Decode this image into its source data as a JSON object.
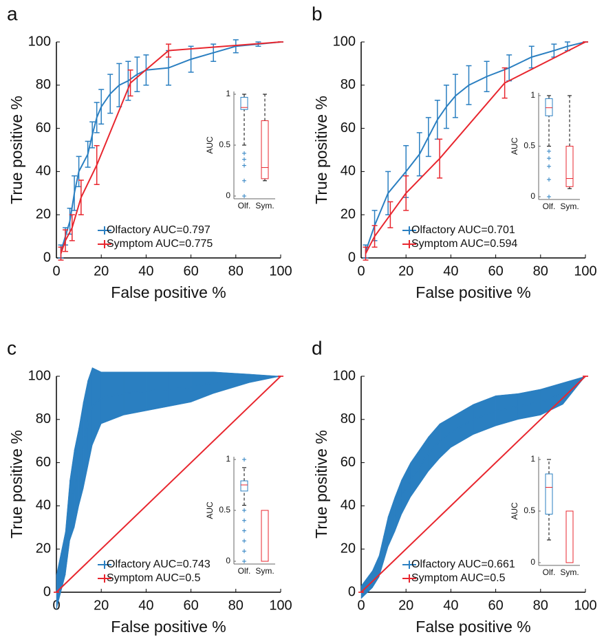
{
  "chart_data": [
    {
      "type": "line",
      "panel_label": "a",
      "xlabel": "False positive %",
      "ylabel": "True positive %",
      "xlim": [
        0,
        100
      ],
      "ylim": [
        0,
        100
      ],
      "xticks": [
        0,
        20,
        40,
        60,
        80,
        100
      ],
      "yticks": [
        0,
        20,
        40,
        60,
        80,
        100
      ],
      "legend": "lower right",
      "error_style": "bars",
      "series": [
        {
          "name": "Olfactory AUC=0.797",
          "color": "#2a7fc1",
          "x": [
            2,
            4,
            6,
            8,
            10,
            14,
            16,
            18,
            20,
            24,
            28,
            32,
            36,
            40,
            50,
            60,
            70,
            80,
            90,
            100
          ],
          "values": [
            3,
            10,
            17,
            30,
            40,
            48,
            57,
            65,
            70,
            76,
            80,
            82,
            85,
            87,
            88,
            92,
            95,
            98,
            99,
            100
          ],
          "errors": [
            3,
            4,
            6,
            8,
            7,
            6,
            6,
            7,
            8,
            9,
            10,
            9,
            8,
            7,
            8,
            6,
            4,
            3,
            1,
            0
          ]
        },
        {
          "name": "Symptom AUC=0.775",
          "color": "#e8262e",
          "x": [
            2,
            4,
            7,
            11,
            18,
            33,
            50,
            100
          ],
          "values": [
            2,
            8,
            14,
            28,
            43,
            81,
            96,
            100
          ],
          "errors": [
            3,
            5,
            6,
            8,
            9,
            6,
            3,
            0
          ]
        }
      ],
      "inset": {
        "type": "box",
        "ylabel": "AUC",
        "categories": [
          "Olf.",
          "Sym."
        ],
        "ylim": [
          0,
          1
        ],
        "yticks": [
          0,
          0.5,
          1
        ],
        "boxes": [
          {
            "color": "#2a7fc1",
            "whisker_low": 0.5,
            "q1": 0.85,
            "median": 0.87,
            "q3": 0.97,
            "whisker_high": 1,
            "outliers": [
              0.42,
              0.36,
              0.3,
              0.15,
              0
            ]
          },
          {
            "color": "#e8262e",
            "whisker_low": 0.15,
            "q1": 0.17,
            "median": 0.28,
            "q3": 0.74,
            "whisker_high": 1,
            "outliers": []
          }
        ]
      }
    },
    {
      "type": "line",
      "panel_label": "b",
      "xlabel": "False positive %",
      "ylabel": "True positive %",
      "xlim": [
        0,
        100
      ],
      "ylim": [
        0,
        100
      ],
      "xticks": [
        0,
        20,
        40,
        60,
        80,
        100
      ],
      "yticks": [
        0,
        20,
        40,
        60,
        80,
        100
      ],
      "legend": "lower right",
      "error_style": "bars",
      "series": [
        {
          "name": "Olfactory AUC=0.701",
          "color": "#2a7fc1",
          "x": [
            2,
            6,
            12,
            20,
            26,
            30,
            34,
            38,
            42,
            48,
            56,
            66,
            76,
            86,
            92,
            100
          ],
          "values": [
            3,
            15,
            30,
            40,
            48,
            56,
            64,
            70,
            75,
            80,
            84,
            88,
            93,
            96,
            98,
            100
          ],
          "errors": [
            3,
            7,
            10,
            12,
            10,
            9,
            9,
            10,
            10,
            9,
            7,
            6,
            5,
            3,
            2,
            0
          ]
        },
        {
          "name": "Symptom AUC=0.594",
          "color": "#e8262e",
          "x": [
            2,
            6,
            13,
            20,
            35,
            64,
            100
          ],
          "values": [
            2,
            10,
            20,
            30,
            46,
            81,
            100
          ],
          "errors": [
            3,
            5,
            6,
            8,
            9,
            7,
            0
          ]
        }
      ],
      "inset": {
        "type": "box",
        "ylabel": "AUC",
        "categories": [
          "Olf.",
          "Sym."
        ],
        "ylim": [
          0,
          1
        ],
        "yticks": [
          0,
          0.5,
          1
        ],
        "boxes": [
          {
            "color": "#2a7fc1",
            "whisker_low": 0.5,
            "q1": 0.8,
            "median": 0.88,
            "q3": 0.97,
            "whisker_high": 1,
            "outliers": [
              0.45,
              0.38,
              0.3,
              0.17,
              0
            ]
          },
          {
            "color": "#e8262e",
            "whisker_low": 0.08,
            "q1": 0.1,
            "median": 0.18,
            "q3": 0.5,
            "whisker_high": 1,
            "outliers": []
          }
        ]
      }
    },
    {
      "type": "line",
      "panel_label": "c",
      "xlabel": "False positive %",
      "ylabel": "True positive %",
      "xlim": [
        0,
        100
      ],
      "ylim": [
        0,
        100
      ],
      "xticks": [
        0,
        20,
        40,
        60,
        80,
        100
      ],
      "yticks": [
        0,
        20,
        40,
        60,
        80,
        100
      ],
      "legend": "lower right",
      "error_style": "band",
      "series": [
        {
          "name": "Olfactory AUC=0.743",
          "color": "#2a7fc1",
          "x": [
            0,
            2,
            4,
            5,
            6,
            8,
            10,
            12,
            14,
            16,
            20,
            30,
            40,
            50,
            60,
            70,
            86,
            100
          ],
          "values": [
            0,
            9,
            18,
            28,
            38,
            48,
            58,
            68,
            78,
            86,
            90,
            92,
            93,
            94,
            95,
            97,
            99,
            100
          ],
          "errors": [
            8,
            9,
            10,
            12,
            14,
            18,
            18,
            20,
            20,
            18,
            12,
            10,
            9,
            8,
            7,
            5,
            2,
            0
          ]
        },
        {
          "name": "Symptom AUC=0.5",
          "color": "#e8262e",
          "x": [
            0,
            100
          ],
          "values": [
            0,
            100
          ],
          "errors": [
            0,
            0
          ]
        }
      ],
      "inset": {
        "type": "box",
        "ylabel": "AUC",
        "categories": [
          "Olf.",
          "Sym."
        ],
        "ylim": [
          0,
          1
        ],
        "yticks": [
          0,
          0.5,
          1
        ],
        "boxes": [
          {
            "color": "#2a7fc1",
            "whisker_low": 0.55,
            "q1": 0.69,
            "median": 0.75,
            "q3": 0.79,
            "whisker_high": 0.92,
            "outliers": [
              1,
              0.5,
              0.4,
              0.3,
              0.2,
              0.1,
              0
            ]
          },
          {
            "color": "#e8262e",
            "whisker_low": 0,
            "q1": 0,
            "median": 0.5,
            "q3": 0.5,
            "whisker_high": 0.5,
            "outliers": []
          }
        ]
      }
    },
    {
      "type": "line",
      "panel_label": "d",
      "xlabel": "False positive %",
      "ylabel": "True positive %",
      "xlim": [
        0,
        100
      ],
      "ylim": [
        0,
        100
      ],
      "xticks": [
        0,
        20,
        40,
        60,
        80,
        100
      ],
      "yticks": [
        0,
        20,
        40,
        60,
        80,
        100
      ],
      "legend": "lower right",
      "error_style": "band",
      "series": [
        {
          "name": "Olfactory AUC=0.661",
          "color": "#2a7fc1",
          "x": [
            0,
            5,
            8,
            10,
            12,
            15,
            18,
            22,
            26,
            30,
            35,
            40,
            50,
            60,
            70,
            80,
            90,
            100
          ],
          "values": [
            0,
            6,
            12,
            20,
            28,
            36,
            44,
            52,
            58,
            64,
            70,
            74,
            80,
            84,
            86,
            88,
            92,
            100
          ],
          "errors": [
            3,
            4,
            5,
            6,
            7,
            8,
            8,
            8,
            8,
            8,
            8,
            7,
            7,
            7,
            6,
            6,
            5,
            0
          ]
        },
        {
          "name": "Symptom AUC=0.5",
          "color": "#e8262e",
          "x": [
            0,
            100
          ],
          "values": [
            0,
            100
          ],
          "errors": [
            0,
            0
          ]
        }
      ],
      "inset": {
        "type": "box",
        "ylabel": "AUC",
        "categories": [
          "Olf.",
          "Sym."
        ],
        "ylim": [
          0,
          1
        ],
        "yticks": [
          0,
          0.5,
          1
        ],
        "boxes": [
          {
            "color": "#2a7fc1",
            "whisker_low": 0.22,
            "q1": 0.47,
            "median": 0.73,
            "q3": 0.86,
            "whisker_high": 1,
            "outliers": []
          },
          {
            "color": "#e8262e",
            "whisker_low": 0,
            "q1": 0,
            "median": 0.5,
            "q3": 0.5,
            "whisker_high": 0.5,
            "outliers": []
          }
        ]
      }
    }
  ]
}
